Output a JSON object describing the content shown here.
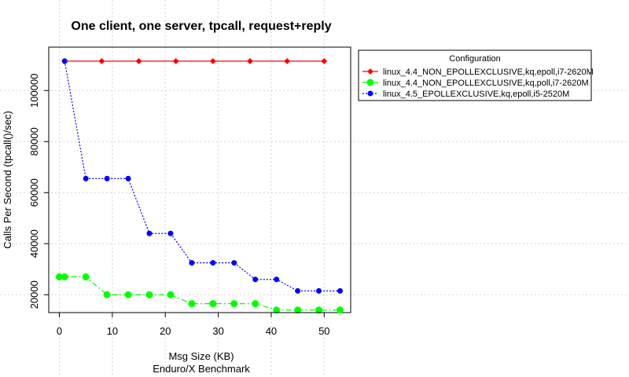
{
  "chart_data": {
    "type": "line",
    "title": "One client, one server, tpcall, request+reply",
    "xlabel": "Msg Size (KB)",
    "subtitle": "Enduro/X Benchmark",
    "ylabel": "Calls Per Second (tpcall()/sec)",
    "xlim": [
      -2,
      55
    ],
    "ylim": [
      13000,
      117000
    ],
    "xticks": [
      0,
      10,
      20,
      30,
      40,
      50
    ],
    "yticks": [
      20000,
      40000,
      60000,
      80000,
      100000
    ],
    "grid": true,
    "legend": {
      "title": "Configuration",
      "position": "outside-right-top"
    },
    "series": [
      {
        "name": "linux_4.4_NON_EPOLLEXCLUSIVE,kq,epoll,i7-2620M",
        "color": "#ff0000",
        "line_style": "solid",
        "marker": "diamond",
        "x": [
          1,
          8,
          15,
          22,
          29,
          36,
          43,
          50
        ],
        "values": [
          111500,
          111500,
          111500,
          111500,
          111500,
          111500,
          111500,
          111500
        ]
      },
      {
        "name": "linux_4.4_NON_EPOLLEXCLUSIVE,kq,poll,i7-2620M",
        "color": "#00ff00",
        "line_style": "dashdot",
        "marker": "circle-large",
        "x": [
          0,
          1,
          5,
          9,
          13,
          17,
          21,
          25,
          29,
          33,
          37,
          41,
          45,
          49,
          53
        ],
        "values": [
          27000,
          27000,
          27000,
          20000,
          20000,
          20000,
          20000,
          16500,
          16500,
          16500,
          16500,
          14000,
          14000,
          14000,
          14000
        ]
      },
      {
        "name": "linux_4.5_EPOLLEXCLUSIVE,kq,epoll,i5-2520M",
        "color": "#0000ff",
        "line_style": "dotted",
        "marker": "circle",
        "x": [
          1,
          5,
          9,
          13,
          17,
          21,
          25,
          29,
          33,
          37,
          41,
          45,
          49,
          53
        ],
        "values": [
          111500,
          65500,
          65500,
          65500,
          44000,
          44000,
          32500,
          32500,
          32500,
          26000,
          26000,
          21500,
          21500,
          21500
        ]
      }
    ]
  }
}
